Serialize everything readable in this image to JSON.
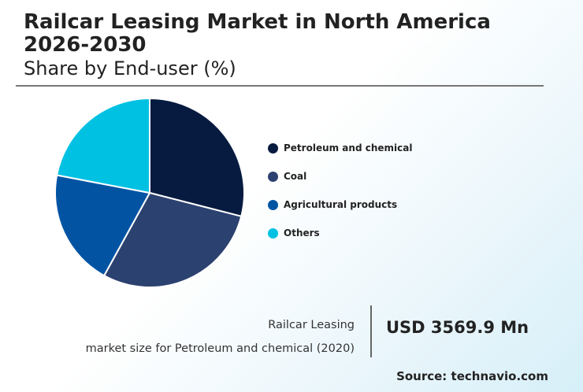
{
  "header": {
    "title": "Railcar Leasing Market in North America 2026-2030",
    "subtitle": "Share by End-user (%)"
  },
  "chart_data": {
    "type": "pie",
    "categories": [
      "Petroleum and chemical",
      "Coal",
      "Agricultural products",
      "Others"
    ],
    "values": [
      29,
      29,
      20,
      22
    ],
    "colors": [
      "#071b40",
      "#2b4170",
      "#0254a3",
      "#01c1e3"
    ],
    "legend_position": "right"
  },
  "footer": {
    "caption_line1": "Railcar Leasing",
    "caption_line2": "market size for Petroleum and chemical (2020)",
    "value": "USD 3569.9 Mn",
    "source": "Source: technavio.com"
  }
}
